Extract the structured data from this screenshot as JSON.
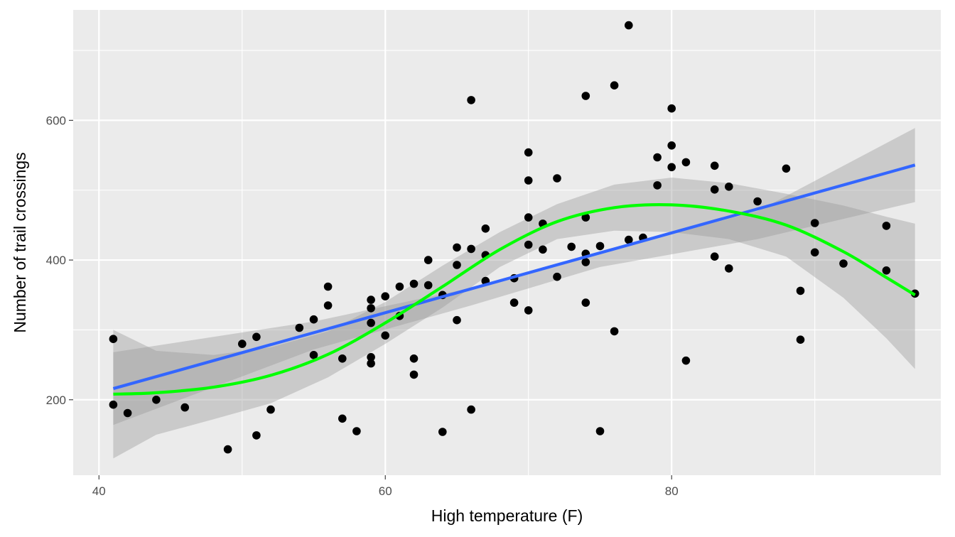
{
  "chart_data": {
    "type": "scatter",
    "title": "",
    "xlabel": "High temperature (F)",
    "ylabel": "Number of trail crossings",
    "xlim": [
      38.2,
      98.8
    ],
    "ylim": [
      92,
      758
    ],
    "x_ticks": [
      40,
      60,
      80
    ],
    "y_ticks": [
      200,
      400,
      600
    ],
    "x_minor": [
      50,
      70,
      90
    ],
    "y_minor": [
      300,
      500,
      700
    ],
    "grid": true,
    "legend": "none",
    "colors": {
      "panel": "#ebebeb",
      "grid": "#ffffff",
      "points": "#000000",
      "linear_fit": "#3366ff",
      "loess_fit": "#00ff00",
      "band": "#999999"
    },
    "points": [
      [
        41,
        287
      ],
      [
        41,
        193
      ],
      [
        42,
        181
      ],
      [
        44,
        200
      ],
      [
        46,
        189
      ],
      [
        49,
        129
      ],
      [
        50,
        280
      ],
      [
        51,
        290
      ],
      [
        51,
        149
      ],
      [
        52,
        186
      ],
      [
        54,
        303
      ],
      [
        55,
        264
      ],
      [
        55,
        315
      ],
      [
        56,
        335
      ],
      [
        56,
        362
      ],
      [
        57,
        259
      ],
      [
        57,
        173
      ],
      [
        58,
        155
      ],
      [
        59,
        343
      ],
      [
        59,
        331
      ],
      [
        59,
        310
      ],
      [
        59,
        261
      ],
      [
        59,
        252
      ],
      [
        60,
        348
      ],
      [
        60,
        292
      ],
      [
        61,
        320
      ],
      [
        61,
        362
      ],
      [
        62,
        366
      ],
      [
        62,
        259
      ],
      [
        62,
        236
      ],
      [
        63,
        400
      ],
      [
        63,
        364
      ],
      [
        64,
        350
      ],
      [
        64,
        154
      ],
      [
        65,
        418
      ],
      [
        65,
        393
      ],
      [
        65,
        314
      ],
      [
        66,
        629
      ],
      [
        66,
        416
      ],
      [
        66,
        186
      ],
      [
        67,
        445
      ],
      [
        67,
        407
      ],
      [
        67,
        370
      ],
      [
        69,
        374
      ],
      [
        69,
        339
      ],
      [
        70,
        554
      ],
      [
        70,
        514
      ],
      [
        70,
        461
      ],
      [
        70,
        422
      ],
      [
        70,
        328
      ],
      [
        71,
        452
      ],
      [
        71,
        415
      ],
      [
        72,
        517
      ],
      [
        72,
        376
      ],
      [
        73,
        419
      ],
      [
        74,
        635
      ],
      [
        74,
        461
      ],
      [
        74,
        409
      ],
      [
        74,
        397
      ],
      [
        74,
        339
      ],
      [
        75,
        420
      ],
      [
        75,
        155
      ],
      [
        76,
        650
      ],
      [
        76,
        298
      ],
      [
        77,
        736
      ],
      [
        77,
        429
      ],
      [
        78,
        432
      ],
      [
        79,
        547
      ],
      [
        79,
        507
      ],
      [
        80,
        617
      ],
      [
        80,
        564
      ],
      [
        80,
        533
      ],
      [
        81,
        540
      ],
      [
        81,
        256
      ],
      [
        83,
        535
      ],
      [
        83,
        501
      ],
      [
        83,
        405
      ],
      [
        84,
        505
      ],
      [
        84,
        388
      ],
      [
        86,
        484
      ],
      [
        88,
        531
      ],
      [
        89,
        356
      ],
      [
        89,
        286
      ],
      [
        90,
        453
      ],
      [
        90,
        411
      ],
      [
        92,
        395
      ],
      [
        95,
        449
      ],
      [
        95,
        385
      ],
      [
        97,
        352
      ]
    ],
    "linear_fit": {
      "x": [
        41,
        97
      ],
      "y": [
        216,
        536
      ],
      "band_upper": [
        [
          41,
          268
        ],
        [
          55,
          312
        ],
        [
          66,
          360
        ],
        [
          75,
          410
        ],
        [
          86,
          470
        ],
        [
          97,
          589
        ]
      ],
      "band_lower": [
        [
          41,
          164
        ],
        [
          55,
          272
        ],
        [
          66,
          335
        ],
        [
          75,
          390
        ],
        [
          86,
          430
        ],
        [
          97,
          483
        ]
      ]
    },
    "loess_fit": {
      "x": [
        41,
        44,
        48,
        52,
        56,
        60,
        64,
        68,
        72,
        76,
        80,
        84,
        88,
        92,
        95,
        97
      ],
      "y": [
        208,
        210,
        218,
        235,
        265,
        310,
        362,
        415,
        455,
        475,
        479,
        470,
        450,
        412,
        375,
        350
      ],
      "band_upper": [
        [
          41,
          300
        ],
        [
          44,
          270
        ],
        [
          48,
          264
        ],
        [
          52,
          275
        ],
        [
          56,
          298
        ],
        [
          60,
          340
        ],
        [
          64,
          392
        ],
        [
          68,
          440
        ],
        [
          72,
          480
        ],
        [
          76,
          508
        ],
        [
          80,
          518
        ],
        [
          84,
          510
        ],
        [
          88,
          495
        ],
        [
          92,
          478
        ],
        [
          95,
          462
        ],
        [
          97,
          452
        ]
      ],
      "band_lower": [
        [
          41,
          116
        ],
        [
          44,
          150
        ],
        [
          48,
          172
        ],
        [
          52,
          195
        ],
        [
          56,
          232
        ],
        [
          60,
          280
        ],
        [
          64,
          332
        ],
        [
          68,
          390
        ],
        [
          72,
          430
        ],
        [
          76,
          442
        ],
        [
          80,
          440
        ],
        [
          84,
          430
        ],
        [
          88,
          405
        ],
        [
          92,
          346
        ],
        [
          95,
          288
        ],
        [
          97,
          244
        ]
      ]
    }
  }
}
